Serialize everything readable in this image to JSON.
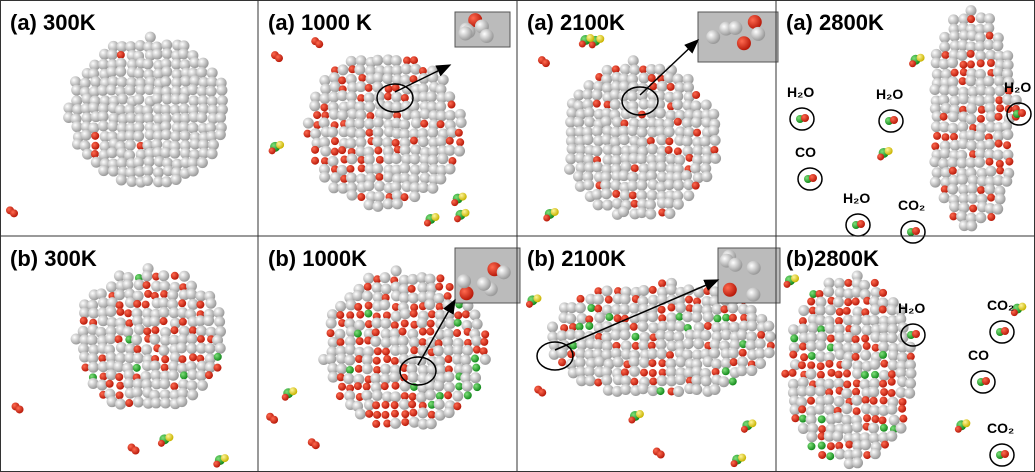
{
  "panels": [
    {
      "label": "(a) 300K"
    },
    {
      "label": "(a) 1000 K"
    },
    {
      "label": "(a) 2100K"
    },
    {
      "label": "(a) 2800K",
      "annotations": [
        "H₂O",
        "H₂O",
        "H₂O",
        "CO",
        "H₂O",
        "CO₂"
      ]
    },
    {
      "label": "(b) 300K"
    },
    {
      "label": "(b) 1000K"
    },
    {
      "label": "(b) 2100K"
    },
    {
      "label": "(b)2800K",
      "annotations": [
        "H₂O",
        "CO₂",
        "CO",
        "CO₂"
      ]
    }
  ]
}
